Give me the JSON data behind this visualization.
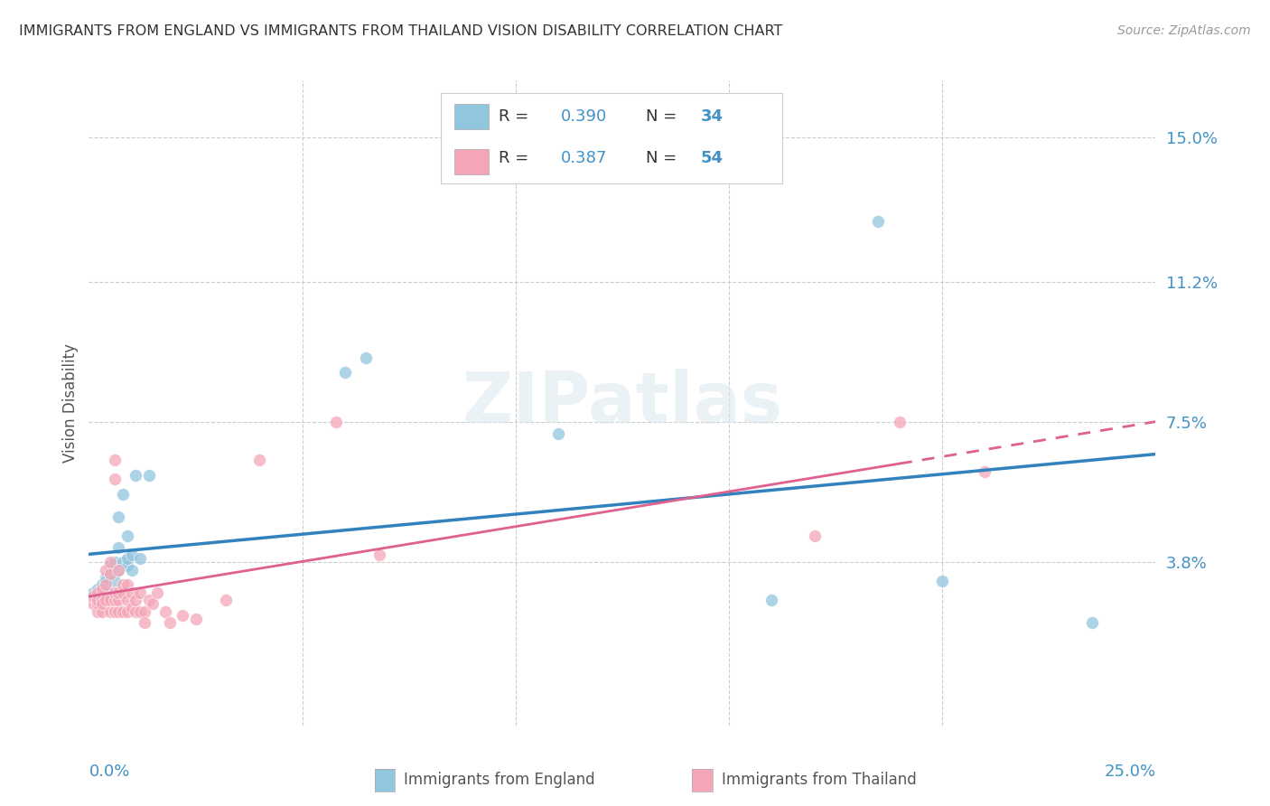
{
  "title": "IMMIGRANTS FROM ENGLAND VS IMMIGRANTS FROM THAILAND VISION DISABILITY CORRELATION CHART",
  "source": "Source: ZipAtlas.com",
  "ylabel": "Vision Disability",
  "ytick_labels": [
    "3.8%",
    "7.5%",
    "11.2%",
    "15.0%"
  ],
  "ytick_values": [
    0.038,
    0.075,
    0.112,
    0.15
  ],
  "xlim": [
    0.0,
    0.25
  ],
  "ylim": [
    -0.005,
    0.165
  ],
  "legend_england_R": "0.390",
  "legend_england_N": "34",
  "legend_thailand_R": "0.387",
  "legend_thailand_N": "54",
  "color_england": "#92c5de",
  "color_thailand": "#f4a6b8",
  "color_trendline_england": "#3182bd",
  "color_trendline_thailand": "#e06090",
  "color_blue": "#4292c6",
  "color_title": "#333333",
  "england_x": [
    0.001,
    0.002,
    0.002,
    0.003,
    0.003,
    0.003,
    0.004,
    0.004,
    0.004,
    0.005,
    0.005,
    0.005,
    0.006,
    0.006,
    0.007,
    0.007,
    0.007,
    0.008,
    0.008,
    0.009,
    0.009,
    0.009,
    0.01,
    0.01,
    0.011,
    0.012,
    0.014,
    0.06,
    0.065,
    0.11,
    0.16,
    0.185,
    0.2,
    0.235
  ],
  "england_y": [
    0.03,
    0.031,
    0.028,
    0.032,
    0.029,
    0.027,
    0.034,
    0.033,
    0.03,
    0.037,
    0.035,
    0.03,
    0.038,
    0.033,
    0.036,
    0.05,
    0.042,
    0.056,
    0.038,
    0.037,
    0.039,
    0.045,
    0.04,
    0.036,
    0.061,
    0.039,
    0.061,
    0.088,
    0.092,
    0.072,
    0.028,
    0.128,
    0.033,
    0.022
  ],
  "thailand_x": [
    0.001,
    0.001,
    0.002,
    0.002,
    0.002,
    0.002,
    0.003,
    0.003,
    0.003,
    0.003,
    0.004,
    0.004,
    0.004,
    0.005,
    0.005,
    0.005,
    0.005,
    0.006,
    0.006,
    0.006,
    0.006,
    0.006,
    0.007,
    0.007,
    0.007,
    0.007,
    0.008,
    0.008,
    0.008,
    0.009,
    0.009,
    0.009,
    0.01,
    0.01,
    0.011,
    0.011,
    0.012,
    0.012,
    0.013,
    0.013,
    0.014,
    0.015,
    0.016,
    0.018,
    0.019,
    0.022,
    0.025,
    0.032,
    0.04,
    0.058,
    0.068,
    0.17,
    0.19,
    0.21
  ],
  "thailand_y": [
    0.027,
    0.029,
    0.025,
    0.027,
    0.03,
    0.028,
    0.025,
    0.028,
    0.031,
    0.027,
    0.028,
    0.032,
    0.036,
    0.025,
    0.028,
    0.035,
    0.038,
    0.025,
    0.028,
    0.03,
    0.06,
    0.065,
    0.025,
    0.028,
    0.03,
    0.036,
    0.025,
    0.03,
    0.032,
    0.025,
    0.028,
    0.032,
    0.026,
    0.03,
    0.025,
    0.028,
    0.03,
    0.025,
    0.025,
    0.022,
    0.028,
    0.027,
    0.03,
    0.025,
    0.022,
    0.024,
    0.023,
    0.028,
    0.065,
    0.075,
    0.04,
    0.045,
    0.075,
    0.062
  ]
}
